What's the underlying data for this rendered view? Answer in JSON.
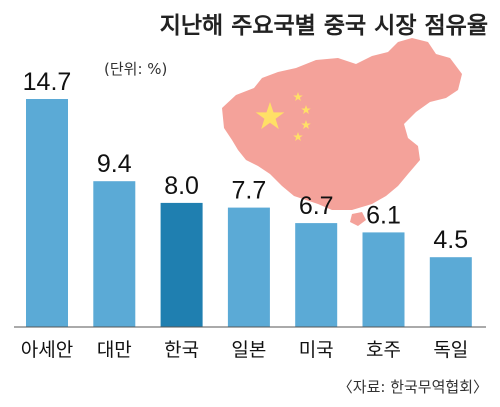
{
  "chart_data": {
    "type": "bar",
    "title": "지난해 주요국별 중국 시장 점유율",
    "unit_note": "(단위: %)",
    "source": "〈자료: 한국무역협회〉",
    "categories": [
      "아세안",
      "대만",
      "한국",
      "일본",
      "미국",
      "호주",
      "독일"
    ],
    "values": [
      14.7,
      9.4,
      8.0,
      7.7,
      6.7,
      6.1,
      4.5
    ],
    "value_labels": [
      "14.7",
      "9.4",
      "8.0",
      "7.7",
      "6.7",
      "6.1",
      "4.5"
    ],
    "highlight_category": "한국",
    "ylim": [
      0,
      14.7
    ],
    "grid": false,
    "legend": "none",
    "colors": {
      "bar": "#5BAAD6",
      "bar_highlight": "#1F7FB0",
      "map_fill": "#F4A29A",
      "flag_star": "#FFE066",
      "axis_line": "#555555"
    }
  }
}
